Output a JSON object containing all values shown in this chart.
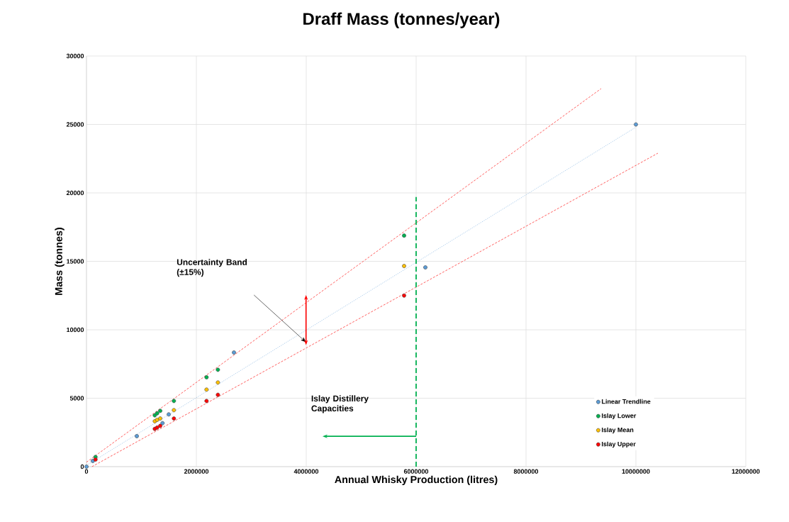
{
  "chart_data": {
    "type": "scatter",
    "title": "Draff Mass (tonnes/year)",
    "xlabel": "Annual Whisky Production (litres)",
    "ylabel": "Mass (tonnes)",
    "xlim": [
      0,
      12000000
    ],
    "ylim": [
      0,
      30000
    ],
    "xticks": [
      0,
      2000000,
      4000000,
      6000000,
      8000000,
      10000000,
      12000000
    ],
    "yticks": [
      0,
      5000,
      10000,
      15000,
      20000,
      25000,
      30000
    ],
    "grid": true,
    "legend": "bottom right",
    "series": [
      {
        "type": "line",
        "marker": "none",
        "color": "#9dc3e6",
        "line_style": "dotted",
        "x": [
          0,
          10000000
        ],
        "values": [
          100,
          24800
        ]
      },
      {
        "type": "line",
        "marker": "none",
        "color": "#ff4d4d",
        "line_style": "dashed",
        "x": [
          0,
          9368000
        ],
        "values": [
          330,
          27620
        ]
      },
      {
        "type": "line",
        "marker": "none",
        "color": "#ff4d4d",
        "line_style": "dashed",
        "x": [
          100000,
          10400000
        ],
        "values": [
          0,
          22900
        ]
      },
      {
        "type": "line",
        "marker": "none",
        "color": "#00b050",
        "line_style": "dashed",
        "x": [
          6000000,
          6000000
        ],
        "values": [
          0,
          19700
        ]
      },
      {
        "name": "Linear Trendline",
        "marker": "circle",
        "color": "#5b9bd5",
        "x": [
          0,
          115000,
          916000,
          1384000,
          1497000,
          2684000,
          6168000,
          10000000
        ],
        "values": [
          0,
          420,
          2230,
          3180,
          3820,
          8340,
          14560,
          25000
        ]
      },
      {
        "name": "Islay Lower",
        "marker": "circle",
        "color": "#00b050",
        "x": [
          164000,
          1243000,
          1286000,
          1342000,
          1591000,
          2185000,
          2392000,
          5781000
        ],
        "values": [
          710,
          3750,
          3900,
          4080,
          4800,
          6530,
          7080,
          16880
        ]
      },
      {
        "name": "Islay Mean",
        "marker": "circle",
        "color": "#ffc000",
        "x": [
          1243000,
          1286000,
          1342000,
          1591000,
          2185000,
          2392000,
          5781000
        ],
        "values": [
          3320,
          3420,
          3520,
          4130,
          5630,
          6150,
          14660
        ]
      },
      {
        "name": "Islay Upper",
        "marker": "circle",
        "color": "#ff0000",
        "x": [
          164000,
          1243000,
          1286000,
          1342000,
          1591000,
          2185000,
          2392000,
          5781000
        ],
        "values": [
          520,
          2760,
          2860,
          2980,
          3520,
          4800,
          5250,
          12500
        ]
      }
    ],
    "annotations": [
      "Uncertainty Band (±15%)",
      "Islay Distillery Capacities"
    ]
  }
}
